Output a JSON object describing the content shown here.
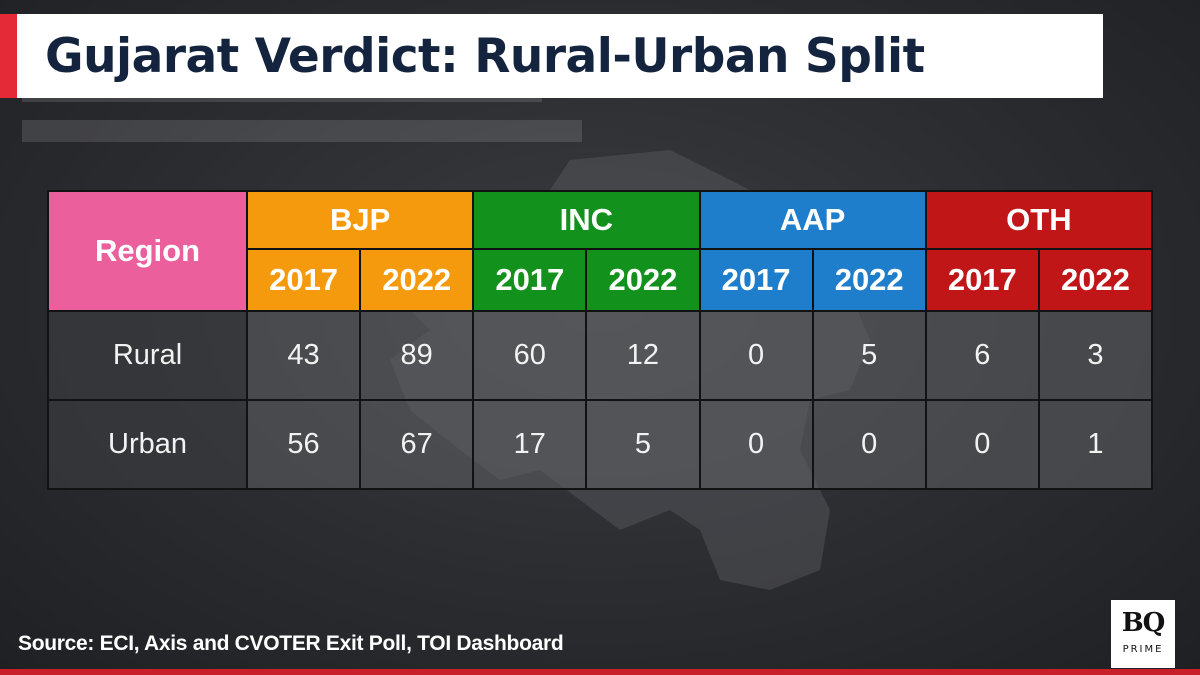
{
  "title": "Gujarat Verdict: Rural-Urban Split",
  "source": "Source: ECI, Axis and CVOTER Exit Poll, TOI Dashboard",
  "logo": {
    "main": "BQ",
    "sub": "PRIME"
  },
  "colors": {
    "bjp": "#f59a0c",
    "inc": "#12911c",
    "aap": "#1f7ecb",
    "oth": "#c01618",
    "region": "#ec5f9d",
    "accent": "#e42a36"
  },
  "chart_data": {
    "type": "table",
    "region_header": "Region",
    "parties": [
      "BJP",
      "INC",
      "AAP",
      "OTH"
    ],
    "years": [
      "2017",
      "2022"
    ],
    "rows": [
      {
        "region": "Rural",
        "values": [
          43,
          89,
          60,
          12,
          0,
          5,
          6,
          3
        ]
      },
      {
        "region": "Urban",
        "values": [
          56,
          67,
          17,
          5,
          0,
          0,
          0,
          1
        ]
      }
    ]
  }
}
